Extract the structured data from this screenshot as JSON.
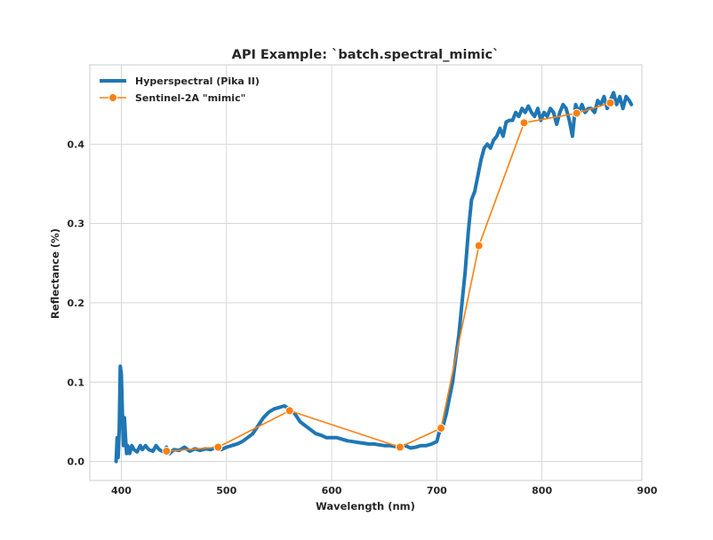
{
  "chart_data": {
    "type": "line",
    "title": "API Example: `batch.spectral_mimic`",
    "xlabel": "Wavelength (nm)",
    "ylabel": "Reflectance (%)",
    "xlim": [
      370,
      895
    ],
    "ylim": [
      -0.024,
      0.5
    ],
    "xticks": [
      400,
      500,
      600,
      700,
      800,
      900
    ],
    "yticks": [
      0.0,
      0.1,
      0.2,
      0.3,
      0.4
    ],
    "xtick_labels": [
      "400",
      "500",
      "600",
      "700",
      "800",
      "900"
    ],
    "ytick_labels": [
      "0.0",
      "0.1",
      "0.2",
      "0.3",
      "0.4"
    ],
    "grid": true,
    "legend_position": "top-left",
    "series": [
      {
        "name": "Hyperspectral (Pika II)",
        "color": "#1f77b4",
        "marker": "none",
        "x": [
          395,
          396,
          397,
          398,
          399,
          400,
          401,
          402,
          403,
          404,
          405,
          406,
          407,
          408,
          410,
          412,
          415,
          418,
          420,
          423,
          426,
          430,
          433,
          436,
          440,
          443,
          446,
          450,
          455,
          460,
          465,
          470,
          475,
          480,
          485,
          490,
          495,
          500,
          505,
          510,
          515,
          520,
          525,
          530,
          535,
          540,
          545,
          550,
          555,
          560,
          565,
          570,
          575,
          580,
          585,
          590,
          595,
          600,
          605,
          610,
          615,
          620,
          625,
          630,
          635,
          640,
          645,
          650,
          655,
          660,
          665,
          670,
          675,
          680,
          685,
          690,
          695,
          700,
          703,
          706,
          709,
          712,
          715,
          718,
          721,
          724,
          727,
          730,
          733,
          736,
          739,
          742,
          745,
          748,
          751,
          754,
          757,
          760,
          763,
          766,
          769,
          772,
          775,
          778,
          781,
          784,
          787,
          790,
          793,
          796,
          799,
          802,
          805,
          808,
          811,
          814,
          817,
          820,
          823,
          826,
          829,
          832,
          835,
          838,
          841,
          844,
          847,
          850,
          853,
          856,
          859,
          862,
          865,
          868,
          871,
          874,
          877,
          880,
          883,
          885
        ],
        "y": [
          0.0,
          0.03,
          0.005,
          0.04,
          0.12,
          0.11,
          0.06,
          0.02,
          0.055,
          0.03,
          0.01,
          0.02,
          0.015,
          0.01,
          0.02,
          0.015,
          0.012,
          0.02,
          0.015,
          0.02,
          0.015,
          0.013,
          0.02,
          0.015,
          0.012,
          0.018,
          0.01,
          0.015,
          0.014,
          0.018,
          0.013,
          0.016,
          0.014,
          0.016,
          0.015,
          0.018,
          0.015,
          0.018,
          0.02,
          0.022,
          0.025,
          0.03,
          0.035,
          0.045,
          0.055,
          0.062,
          0.066,
          0.068,
          0.07,
          0.066,
          0.06,
          0.05,
          0.045,
          0.04,
          0.035,
          0.033,
          0.03,
          0.03,
          0.03,
          0.028,
          0.026,
          0.025,
          0.024,
          0.023,
          0.022,
          0.022,
          0.021,
          0.02,
          0.02,
          0.019,
          0.018,
          0.02,
          0.017,
          0.018,
          0.02,
          0.02,
          0.022,
          0.025,
          0.04,
          0.045,
          0.06,
          0.08,
          0.1,
          0.13,
          0.16,
          0.2,
          0.24,
          0.29,
          0.33,
          0.34,
          0.36,
          0.38,
          0.395,
          0.4,
          0.395,
          0.405,
          0.41,
          0.42,
          0.41,
          0.428,
          0.43,
          0.43,
          0.44,
          0.435,
          0.445,
          0.44,
          0.448,
          0.44,
          0.435,
          0.445,
          0.43,
          0.44,
          0.435,
          0.445,
          0.44,
          0.425,
          0.44,
          0.45,
          0.445,
          0.43,
          0.41,
          0.45,
          0.44,
          0.45,
          0.44,
          0.445,
          0.445,
          0.44,
          0.455,
          0.45,
          0.46,
          0.445,
          0.455,
          0.465,
          0.45,
          0.46,
          0.445,
          0.46,
          0.455,
          0.45
        ]
      },
      {
        "name": "Sentinel-2A \"mimic\"",
        "color": "#ff7f0e",
        "marker": "circle",
        "x": [
          443,
          492,
          560,
          665,
          704,
          740,
          783,
          833,
          865
        ],
        "y": [
          0.013,
          0.018,
          0.064,
          0.018,
          0.042,
          0.272,
          0.427,
          0.439,
          0.452
        ]
      }
    ]
  }
}
